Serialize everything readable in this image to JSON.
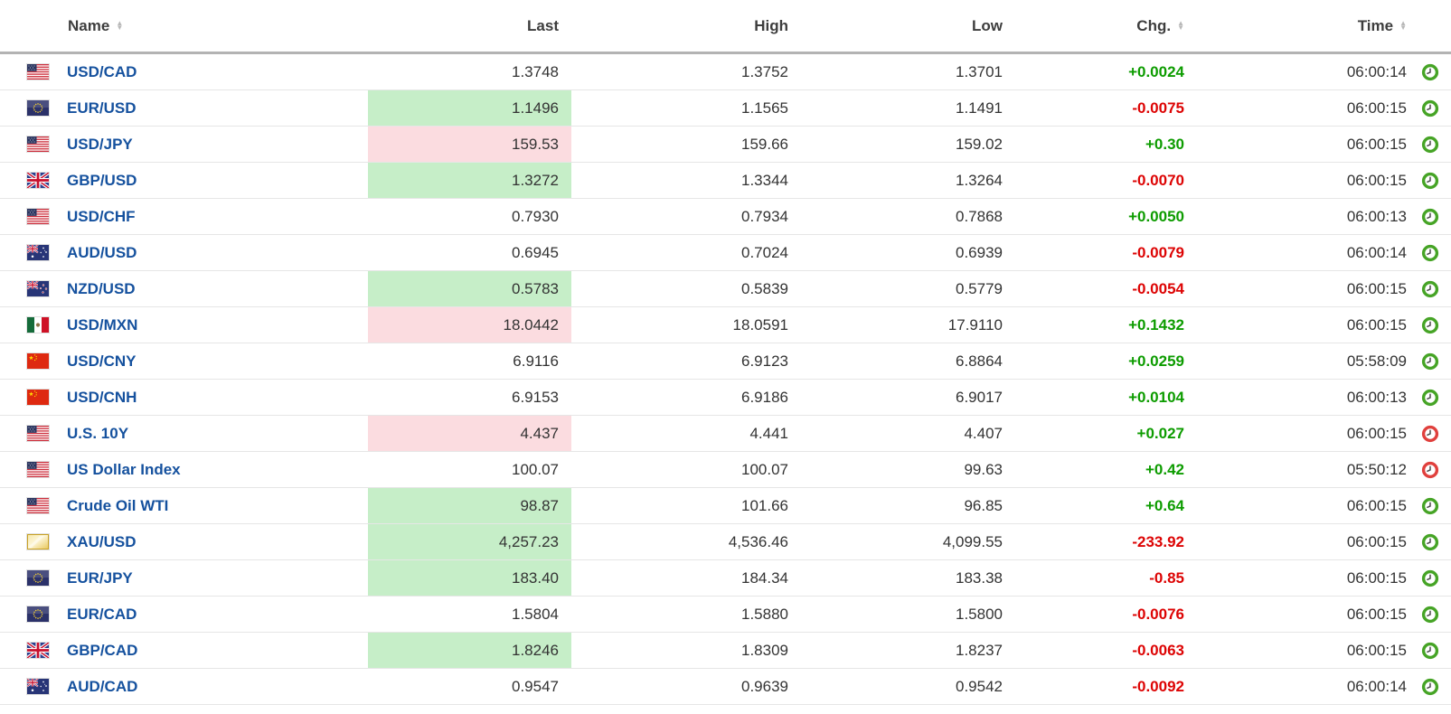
{
  "table": {
    "columns": [
      {
        "label": "Name",
        "sortable": true
      },
      {
        "label": "Last",
        "sortable": false
      },
      {
        "label": "High",
        "sortable": false
      },
      {
        "label": "Low",
        "sortable": false
      },
      {
        "label": "Chg.",
        "sortable": true
      },
      {
        "label": "Time",
        "sortable": true
      }
    ],
    "colors": {
      "link": "#15519e",
      "up_text": "#0d9c00",
      "down_text": "#dd0404",
      "up_bg": "#c6eec8",
      "down_bg": "#fbdce0",
      "clock_green": "#46a426",
      "clock_red": "#e0403d"
    },
    "rows": [
      {
        "flag": "us",
        "name": "USD/CAD",
        "last": "1.3748",
        "last_highlight": "none",
        "high": "1.3752",
        "low": "1.3701",
        "chg": "+0.0024",
        "chg_dir": "up",
        "time": "06:00:14",
        "clock": "green"
      },
      {
        "flag": "eu",
        "name": "EUR/USD",
        "last": "1.1496",
        "last_highlight": "green",
        "high": "1.1565",
        "low": "1.1491",
        "chg": "-0.0075",
        "chg_dir": "down",
        "time": "06:00:15",
        "clock": "green"
      },
      {
        "flag": "us",
        "name": "USD/JPY",
        "last": "159.53",
        "last_highlight": "red",
        "high": "159.66",
        "low": "159.02",
        "chg": "+0.30",
        "chg_dir": "up",
        "time": "06:00:15",
        "clock": "green"
      },
      {
        "flag": "uk",
        "name": "GBP/USD",
        "last": "1.3272",
        "last_highlight": "green",
        "high": "1.3344",
        "low": "1.3264",
        "chg": "-0.0070",
        "chg_dir": "down",
        "time": "06:00:15",
        "clock": "green"
      },
      {
        "flag": "us",
        "name": "USD/CHF",
        "last": "0.7930",
        "last_highlight": "none",
        "high": "0.7934",
        "low": "0.7868",
        "chg": "+0.0050",
        "chg_dir": "up",
        "time": "06:00:13",
        "clock": "green"
      },
      {
        "flag": "au",
        "name": "AUD/USD",
        "last": "0.6945",
        "last_highlight": "none",
        "high": "0.7024",
        "low": "0.6939",
        "chg": "-0.0079",
        "chg_dir": "down",
        "time": "06:00:14",
        "clock": "green"
      },
      {
        "flag": "nz",
        "name": "NZD/USD",
        "last": "0.5783",
        "last_highlight": "green",
        "high": "0.5839",
        "low": "0.5779",
        "chg": "-0.0054",
        "chg_dir": "down",
        "time": "06:00:15",
        "clock": "green"
      },
      {
        "flag": "mx",
        "name": "USD/MXN",
        "last": "18.0442",
        "last_highlight": "red",
        "high": "18.0591",
        "low": "17.9110",
        "chg": "+0.1432",
        "chg_dir": "up",
        "time": "06:00:15",
        "clock": "green"
      },
      {
        "flag": "cn",
        "name": "USD/CNY",
        "last": "6.9116",
        "last_highlight": "none",
        "high": "6.9123",
        "low": "6.8864",
        "chg": "+0.0259",
        "chg_dir": "up",
        "time": "05:58:09",
        "clock": "green"
      },
      {
        "flag": "cn",
        "name": "USD/CNH",
        "last": "6.9153",
        "last_highlight": "none",
        "high": "6.9186",
        "low": "6.9017",
        "chg": "+0.0104",
        "chg_dir": "up",
        "time": "06:00:13",
        "clock": "green"
      },
      {
        "flag": "us",
        "name": "U.S. 10Y",
        "last": "4.437",
        "last_highlight": "red",
        "high": "4.441",
        "low": "4.407",
        "chg": "+0.027",
        "chg_dir": "up",
        "time": "06:00:15",
        "clock": "red"
      },
      {
        "flag": "us",
        "name": "US Dollar Index",
        "last": "100.07",
        "last_highlight": "none",
        "high": "100.07",
        "low": "99.63",
        "chg": "+0.42",
        "chg_dir": "up",
        "time": "05:50:12",
        "clock": "red"
      },
      {
        "flag": "us",
        "name": "Crude Oil WTI",
        "last": "98.87",
        "last_highlight": "green",
        "high": "101.66",
        "low": "96.85",
        "chg": "+0.64",
        "chg_dir": "up",
        "time": "06:00:15",
        "clock": "green"
      },
      {
        "flag": "gold",
        "name": "XAU/USD",
        "last": "4,257.23",
        "last_highlight": "green",
        "high": "4,536.46",
        "low": "4,099.55",
        "chg": "-233.92",
        "chg_dir": "down",
        "time": "06:00:15",
        "clock": "green"
      },
      {
        "flag": "eu",
        "name": "EUR/JPY",
        "last": "183.40",
        "last_highlight": "green",
        "high": "184.34",
        "low": "183.38",
        "chg": "-0.85",
        "chg_dir": "down",
        "time": "06:00:15",
        "clock": "green"
      },
      {
        "flag": "eu",
        "name": "EUR/CAD",
        "last": "1.5804",
        "last_highlight": "none",
        "high": "1.5880",
        "low": "1.5800",
        "chg": "-0.0076",
        "chg_dir": "down",
        "time": "06:00:15",
        "clock": "green"
      },
      {
        "flag": "uk",
        "name": "GBP/CAD",
        "last": "1.8246",
        "last_highlight": "green",
        "high": "1.8309",
        "low": "1.8237",
        "chg": "-0.0063",
        "chg_dir": "down",
        "time": "06:00:15",
        "clock": "green"
      },
      {
        "flag": "au",
        "name": "AUD/CAD",
        "last": "0.9547",
        "last_highlight": "none",
        "high": "0.9639",
        "low": "0.9542",
        "chg": "-0.0092",
        "chg_dir": "down",
        "time": "06:00:14",
        "clock": "green"
      }
    ]
  }
}
